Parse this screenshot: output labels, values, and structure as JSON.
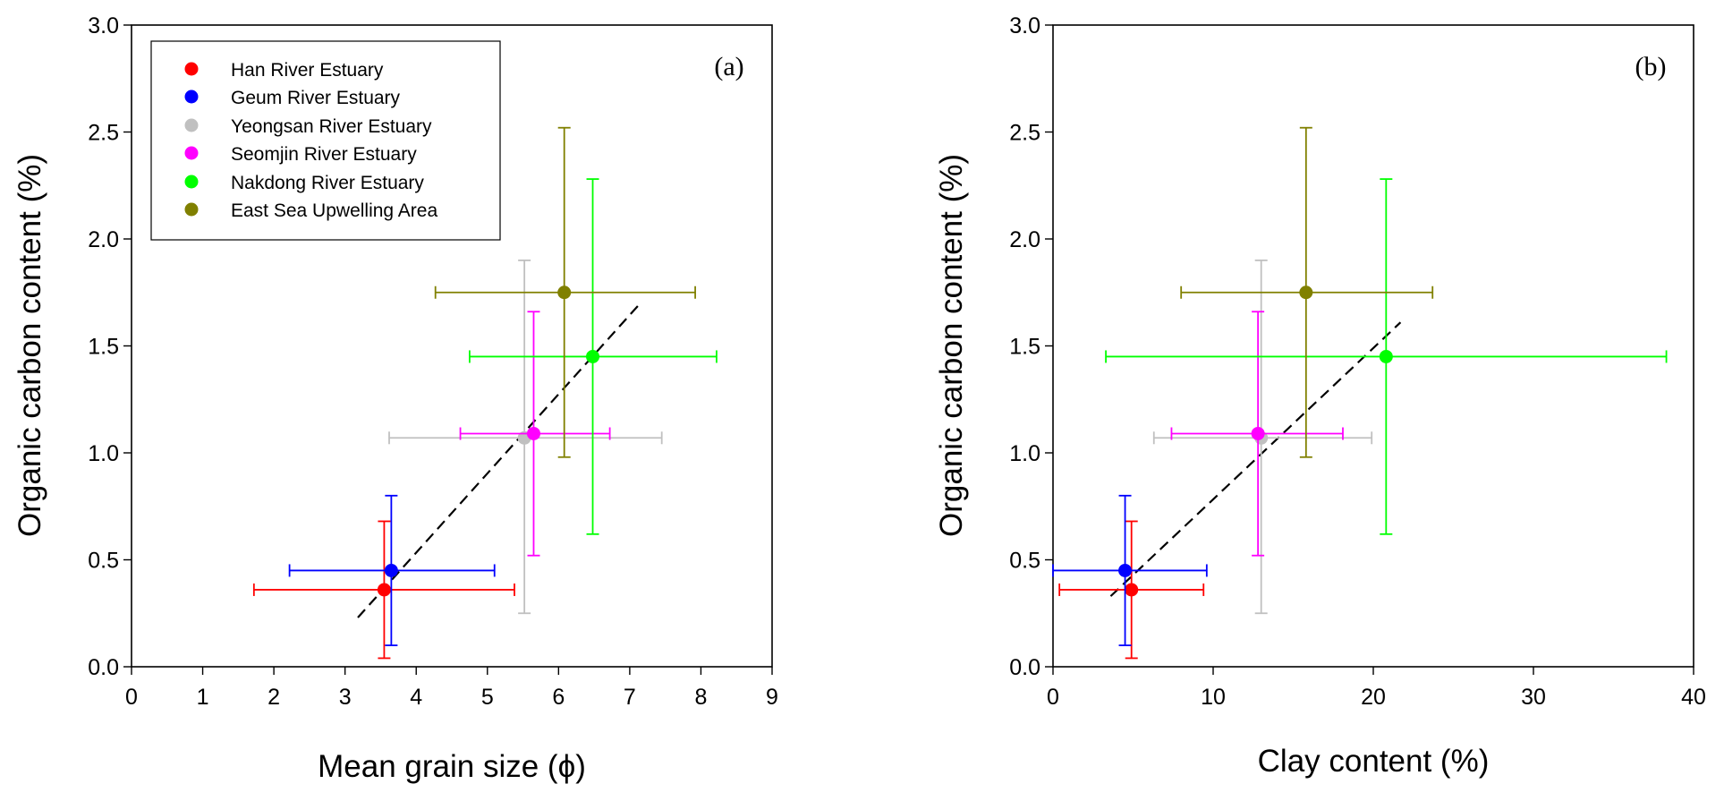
{
  "chart_data": [
    {
      "type": "scatter",
      "panel_label": "(a)",
      "xlabel": "Mean grain size (ϕ)",
      "ylabel": "Organic carbon content (%)",
      "xlim": [
        0,
        9
      ],
      "ylim": [
        0,
        3.0
      ],
      "x_ticks": [
        "0",
        "1",
        "2",
        "3",
        "4",
        "5",
        "6",
        "7",
        "8",
        "9"
      ],
      "y_ticks": [
        "0.0",
        "0.5",
        "1.0",
        "1.5",
        "2.0",
        "2.5",
        "3.0"
      ],
      "grid": false,
      "legend": {
        "placement": "top-left",
        "entries": [
          {
            "label": "Han River Estuary",
            "color": "#ff0000"
          },
          {
            "label": "Geum River Estuary",
            "color": "#0000ff"
          },
          {
            "label": "Yeongsan River Estuary",
            "color": "#c0c0c0"
          },
          {
            "label": "Seomjin River Estuary",
            "color": "#ff00ff"
          },
          {
            "label": "Nakdong River Estuary",
            "color": "#00ff00"
          },
          {
            "label": "East Sea Upwelling Area",
            "color": "#808000"
          }
        ]
      },
      "series": [
        {
          "name": "Han River Estuary",
          "color": "#ff0000",
          "x": 3.55,
          "y": 0.36,
          "x_err": [
            1.72,
            5.38
          ],
          "y_err": [
            0.04,
            0.68
          ]
        },
        {
          "name": "Geum River Estuary",
          "color": "#0000ff",
          "x": 3.65,
          "y": 0.45,
          "x_err": [
            2.22,
            5.1
          ],
          "y_err": [
            0.1,
            0.8
          ]
        },
        {
          "name": "Yeongsan River Estuary",
          "color": "#c0c0c0",
          "x": 5.52,
          "y": 1.07,
          "x_err": [
            3.62,
            7.45
          ],
          "y_err": [
            0.25,
            1.9
          ]
        },
        {
          "name": "Seomjin River Estuary",
          "color": "#ff00ff",
          "x": 5.65,
          "y": 1.09,
          "x_err": [
            4.62,
            6.72
          ],
          "y_err": [
            0.52,
            1.66
          ]
        },
        {
          "name": "Nakdong River Estuary",
          "color": "#00ff00",
          "x": 6.48,
          "y": 1.45,
          "x_err": [
            4.75,
            8.22
          ],
          "y_err": [
            0.62,
            2.28
          ]
        },
        {
          "name": "East Sea Upwelling Area",
          "color": "#808000",
          "x": 6.08,
          "y": 1.75,
          "x_err": [
            4.27,
            7.92
          ],
          "y_err": [
            0.98,
            2.52
          ]
        }
      ],
      "fit_line": {
        "x": [
          3.18,
          7.15
        ],
        "y": [
          0.23,
          1.7
        ]
      }
    },
    {
      "type": "scatter",
      "panel_label": "(b)",
      "xlabel": "Clay content (%)",
      "ylabel": "Organic carbon content (%)",
      "xlim": [
        0,
        40
      ],
      "ylim": [
        0,
        3.0
      ],
      "x_ticks": [
        "0",
        "10",
        "20",
        "30",
        "40"
      ],
      "y_ticks": [
        "0.0",
        "0.5",
        "1.0",
        "1.5",
        "2.0",
        "2.5",
        "3.0"
      ],
      "grid": false,
      "series": [
        {
          "name": "Han River Estuary",
          "color": "#ff0000",
          "x": 4.9,
          "y": 0.36,
          "x_err": [
            0.4,
            9.4
          ],
          "y_err": [
            0.04,
            0.68
          ]
        },
        {
          "name": "Geum River Estuary",
          "color": "#0000ff",
          "x": 4.5,
          "y": 0.45,
          "x_err": [
            0,
            9.6
          ],
          "y_err": [
            0.1,
            0.8
          ]
        },
        {
          "name": "Yeongsan River Estuary",
          "color": "#c0c0c0",
          "x": 13.0,
          "y": 1.07,
          "x_err": [
            6.3,
            19.9
          ],
          "y_err": [
            0.25,
            1.9
          ]
        },
        {
          "name": "Seomjin River Estuary",
          "color": "#ff00ff",
          "x": 12.8,
          "y": 1.09,
          "x_err": [
            7.4,
            18.1
          ],
          "y_err": [
            0.52,
            1.66
          ]
        },
        {
          "name": "Nakdong River Estuary",
          "color": "#00ff00",
          "x": 20.8,
          "y": 1.45,
          "x_err": [
            3.3,
            38.3
          ],
          "y_err": [
            0.62,
            2.28
          ]
        },
        {
          "name": "East Sea Upwelling Area",
          "color": "#808000",
          "x": 15.8,
          "y": 1.75,
          "x_err": [
            8.0,
            23.7
          ],
          "y_err": [
            0.98,
            2.52
          ]
        }
      ],
      "fit_line": {
        "x": [
          3.6,
          21.7
        ],
        "y": [
          0.33,
          1.61
        ]
      }
    }
  ]
}
